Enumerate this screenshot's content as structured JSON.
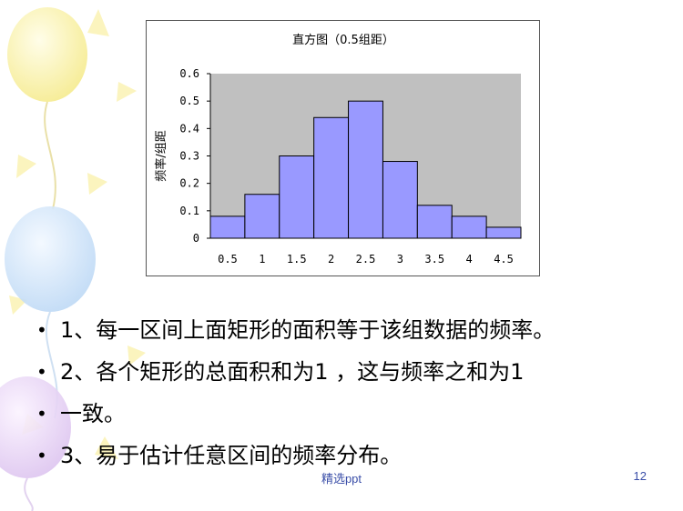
{
  "chart_data": {
    "type": "bar",
    "title": "直方图（0.5组距）",
    "ylabel": "频率/组距",
    "xlabel": "",
    "categories": [
      "0.5",
      "1",
      "1.5",
      "2",
      "2.5",
      "3",
      "3.5",
      "4",
      "4.5"
    ],
    "values": [
      0.08,
      0.16,
      0.3,
      0.44,
      0.5,
      0.28,
      0.12,
      0.08,
      0.04
    ],
    "ylim": [
      0,
      0.6
    ],
    "yticks": [
      "0",
      "0.1",
      "0.2",
      "0.3",
      "0.4",
      "0.5",
      "0.6"
    ],
    "grid": false,
    "legend": "none",
    "colors": {
      "bar": "#9999ff",
      "plot_bg": "#c0c0c0",
      "bar_edge": "#000000"
    }
  },
  "bullets": [
    {
      "symbol": "•",
      "text": "1、每一区间上面矩形的面积等于该组数据的频率。"
    },
    {
      "symbol": "•",
      "text": "2、各个矩形的总面积和为1 ，这与频率之和为1"
    },
    {
      "symbol": "•",
      "text": "一致。"
    },
    {
      "symbol": "•",
      "text": "3、易于估计任意区间的频率分布。"
    }
  ],
  "footer": {
    "center": "精选ppt",
    "page_number": "12"
  }
}
